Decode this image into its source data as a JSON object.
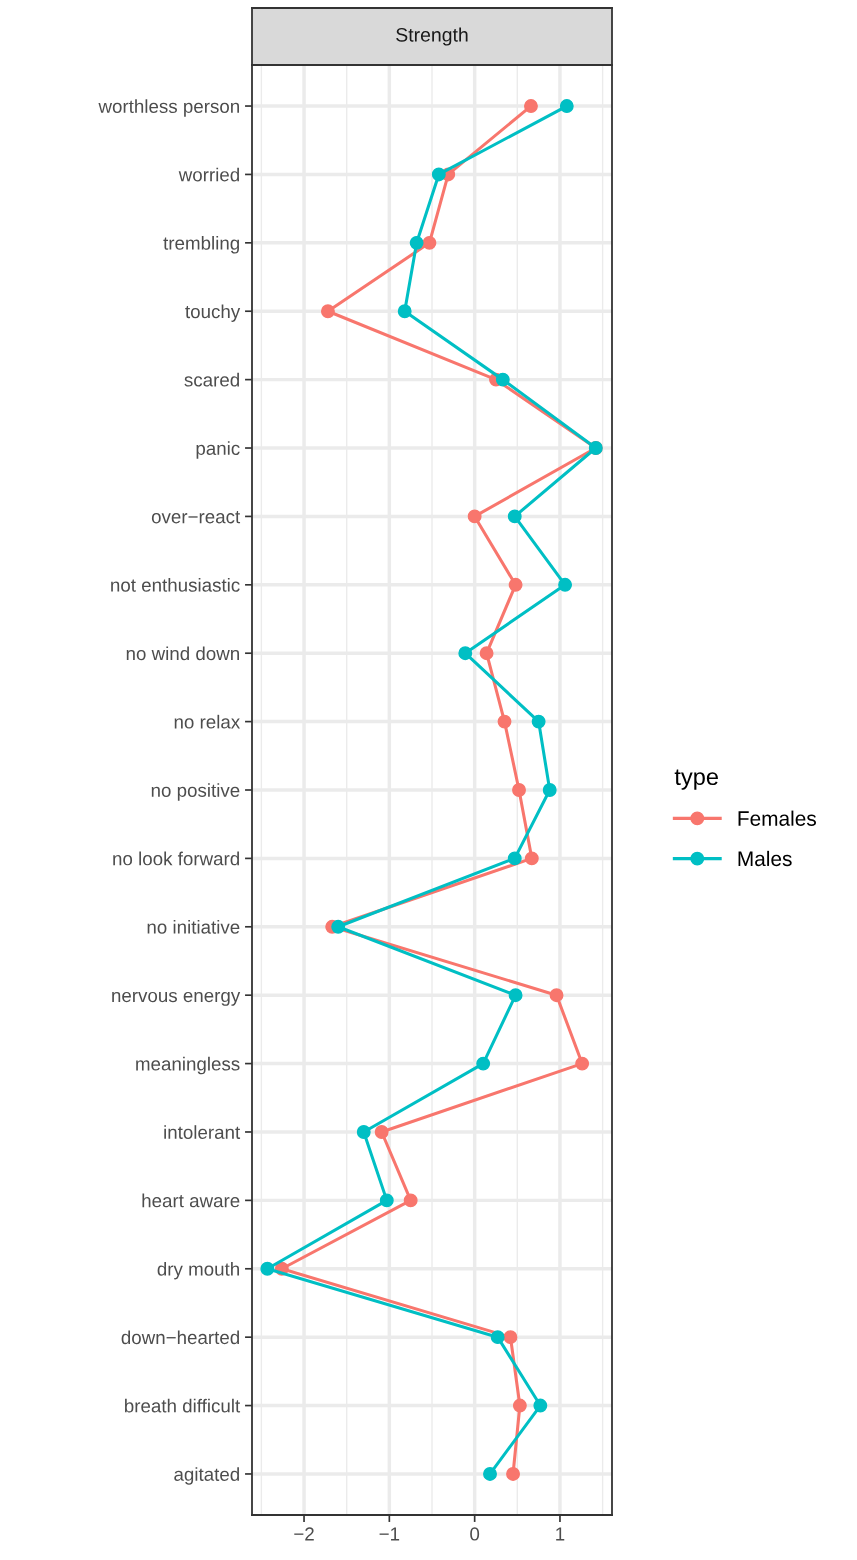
{
  "chart_data": {
    "type": "line",
    "orientation": "horizontal",
    "title": "Strength",
    "legend_title": "type",
    "categories": [
      "worthless person",
      "worried",
      "trembling",
      "touchy",
      "scared",
      "panic",
      "over−react",
      "not enthusiastic",
      "no wind down",
      "no relax",
      "no positive",
      "no look forward",
      "no initiative",
      "nervous energy",
      "meaningless",
      "intolerant",
      "heart aware",
      "dry mouth",
      "down−hearted",
      "breath difficult",
      "agitated"
    ],
    "series": [
      {
        "name": "Females",
        "color": "#f8766d",
        "values": [
          0.66,
          -0.31,
          -0.53,
          -1.72,
          0.25,
          1.42,
          0.0,
          0.48,
          0.14,
          0.35,
          0.52,
          0.67,
          -1.67,
          0.96,
          1.26,
          -1.09,
          -0.75,
          -2.26,
          0.42,
          0.53,
          0.45
        ]
      },
      {
        "name": "Males",
        "color": "#00bfc4",
        "values": [
          1.08,
          -0.42,
          -0.68,
          -0.82,
          0.33,
          1.42,
          0.47,
          1.06,
          -0.11,
          0.75,
          0.88,
          0.47,
          -1.6,
          0.48,
          0.1,
          -1.3,
          -1.03,
          -2.43,
          0.27,
          0.77,
          0.18
        ]
      }
    ],
    "xlim": [
      -2.61,
      1.61
    ],
    "xticks": [
      {
        "value": -2,
        "label": "−2"
      },
      {
        "value": -1,
        "label": "−1"
      },
      0,
      1
    ],
    "grid": true,
    "legend": "right",
    "marker": "circle",
    "line_style": "solid"
  }
}
